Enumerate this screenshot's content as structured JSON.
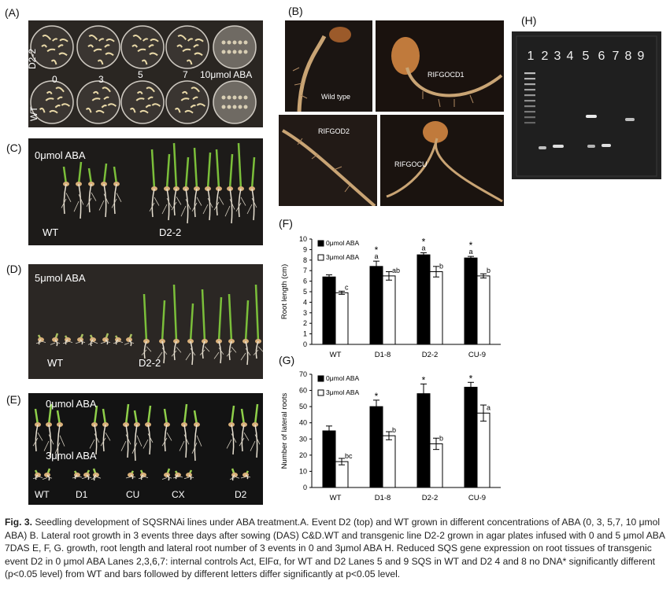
{
  "panels": {
    "A": {
      "label": "(A)",
      "row_top_label": "D2-2",
      "row_bottom_label": "WT",
      "concentrations": [
        "0",
        "3",
        "5",
        "7",
        "10μmol ABA"
      ]
    },
    "B": {
      "label": "(B)",
      "images": [
        "Wild type",
        "RIFGOCD1",
        "RIFGOD2",
        "RIFGOCU"
      ]
    },
    "C": {
      "label": "(C)",
      "treatment": "0μmol ABA",
      "left": "WT",
      "right": "D2-2"
    },
    "D": {
      "label": "(D)",
      "treatment": "5μmol ABA",
      "left": "WT",
      "right": "D2-2"
    },
    "E": {
      "label": "(E)",
      "top_treatment": "0μmol ABA",
      "bottom_treatment": "3μmol ABA",
      "lines": [
        "WT",
        "D1",
        "CU",
        "CX",
        "D2"
      ]
    },
    "F": {
      "label": "(F)"
    },
    "G": {
      "label": "(G)"
    },
    "H": {
      "label": "(H)",
      "lanes": [
        "1",
        "2",
        "3",
        "4",
        "5",
        "6",
        "7",
        "8",
        "9"
      ]
    }
  },
  "chart_data": [
    {
      "type": "bar",
      "panel": "F",
      "categories": [
        "WT",
        "D1-8",
        "D2-2",
        "CU-9"
      ],
      "ylabel": "Root length (cm)",
      "ylim": [
        0,
        10
      ],
      "yticks": [
        0,
        1,
        2,
        3,
        4,
        5,
        6,
        7,
        8,
        9,
        10
      ],
      "legend_position": "top-left",
      "series": [
        {
          "name": "0μmol ABA",
          "color": "#000000",
          "values": [
            6.4,
            7.4,
            8.5,
            8.2
          ],
          "errors": [
            0.2,
            0.5,
            0.2,
            0.15
          ],
          "letters": [
            "",
            "a",
            "a",
            "a"
          ],
          "stars": [
            "",
            "*",
            "*",
            "*"
          ]
        },
        {
          "name": "3μmol ABA",
          "color": "#ffffff",
          "values": [
            4.9,
            6.5,
            6.9,
            6.5
          ],
          "errors": [
            0.15,
            0.4,
            0.5,
            0.2
          ],
          "letters": [
            "c",
            "ab",
            "b",
            "b"
          ],
          "stars": [
            "",
            "",
            "",
            ""
          ]
        }
      ]
    },
    {
      "type": "bar",
      "panel": "G",
      "categories": [
        "WT",
        "D1-8",
        "D2-2",
        "CU-9"
      ],
      "ylabel": "Number of lateral roots",
      "ylim": [
        0,
        70
      ],
      "yticks": [
        0,
        10,
        20,
        30,
        40,
        50,
        60,
        70
      ],
      "legend_position": "top-left",
      "series": [
        {
          "name": "0μmol ABA",
          "color": "#000000",
          "values": [
            35,
            50,
            58,
            62
          ],
          "errors": [
            3,
            4,
            6,
            3
          ],
          "letters": [
            "",
            "",
            "",
            ""
          ],
          "stars": [
            "",
            "*",
            "*",
            "*"
          ]
        },
        {
          "name": "3μmol ABA",
          "color": "#ffffff",
          "values": [
            16,
            32,
            27,
            46
          ],
          "errors": [
            2,
            2.5,
            3.5,
            5
          ],
          "letters": [
            "bc",
            "b",
            "b",
            "a"
          ],
          "stars": [
            "",
            "",
            "",
            ""
          ]
        }
      ]
    }
  ],
  "caption": {
    "fig": "Fig. 3.",
    "text": " Seedling development of SQSRNAi lines under ABA treatment.A. Event D2 (top) and WT grown in different concentrations of ABA (0, 3, 5,7, 10 μmol ABA) B. Lateral root growth in  3 events three days after sowing (DAS) C&D.WT and transgenic line D2-2 grown in agar plates infused with 0 and 5 μmol ABA 7DAS E, F, G. growth, root length and lateral root number of 3 events in 0 and 3μmol ABA H.  Reduced  SQS gene expression on root tissues of transgenic event D2 in 0 μmol ABA Lanes 2,3,6,7: internal controls Act, ElFα, for WT and D2 Lanes 5 and 9 SQS in WT and D2  4 and 8  no DNA* significantly different (p<0.05 level) from WT and bars followed by different letters differ significantly at p<0.05 level."
  }
}
